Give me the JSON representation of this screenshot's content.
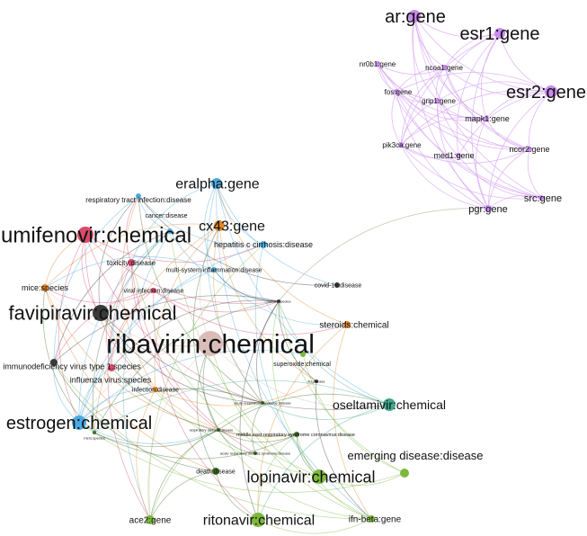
{
  "graph": {
    "type": "knowledge-graph",
    "group_colors": {
      "purple": "#c98bef",
      "blue": "#4aa9e0",
      "orange": "#e0862a",
      "red": "#d94a6c",
      "dark": "#3a3a3a",
      "rose": "#d9bcb8",
      "green": "#7db83d",
      "teal": "#42a68c",
      "darkgreen": "#3f6e2c"
    },
    "nodes": [
      {
        "id": "ar",
        "label": "ar:gene",
        "group": "purple"
      },
      {
        "id": "esr1",
        "label": "esr1:gene",
        "group": "purple"
      },
      {
        "id": "nr0b1",
        "label": "nr0b1:gene",
        "group": "purple"
      },
      {
        "id": "ncoa1",
        "label": "ncoa1:gene",
        "group": "purple"
      },
      {
        "id": "esr2",
        "label": "esr2:gene",
        "group": "purple"
      },
      {
        "id": "fos",
        "label": "fos:gene",
        "group": "purple"
      },
      {
        "id": "grip1",
        "label": "grip1:gene",
        "group": "purple"
      },
      {
        "id": "mapk1",
        "label": "mapk1:gene",
        "group": "purple"
      },
      {
        "id": "pik3ca",
        "label": "pik3ca:gene",
        "group": "purple"
      },
      {
        "id": "med1",
        "label": "med1:gene",
        "group": "purple"
      },
      {
        "id": "ncor2",
        "label": "ncor2:gene",
        "group": "purple"
      },
      {
        "id": "src",
        "label": "src:gene",
        "group": "purple"
      },
      {
        "id": "pgr",
        "label": "pgr:gene",
        "group": "purple"
      },
      {
        "id": "eralpha",
        "label": "eralpha:gene",
        "group": "blue"
      },
      {
        "id": "rti",
        "label": "respiratory tract infection:disease",
        "group": "blue"
      },
      {
        "id": "cancer",
        "label": "cancer:disease",
        "group": "blue"
      },
      {
        "id": "cx43",
        "label": "cx43:gene",
        "group": "orange"
      },
      {
        "id": "umifenovir",
        "label": "umifenovir:chemical",
        "group": "red"
      },
      {
        "id": "hcc",
        "label": "hepatitis c cirrhosis:disease",
        "group": "blue"
      },
      {
        "id": "toxicity",
        "label": "toxicity:disease",
        "group": "red"
      },
      {
        "id": "msi",
        "label": "multi-system inflammation:disease",
        "group": "blue"
      },
      {
        "id": "mice",
        "label": "mice:species",
        "group": "orange"
      },
      {
        "id": "viral",
        "label": "viral infection:disease",
        "group": "red"
      },
      {
        "id": "human",
        "label": "human:species",
        "group": "dark"
      },
      {
        "id": "covid",
        "label": "covid-19:disease",
        "group": "dark"
      },
      {
        "id": "favipiravir",
        "label": "favipiravir:chemical",
        "group": "dark"
      },
      {
        "id": "steroids",
        "label": "steroids:chemical",
        "group": "orange"
      },
      {
        "id": "ribavirin",
        "label": "ribavirin:chemical",
        "group": "rose"
      },
      {
        "id": "superoxide",
        "label": "superoxide:chemical",
        "group": "green"
      },
      {
        "id": "hiv",
        "label": "immunodeficiency virus type 1:species",
        "group": "dark"
      },
      {
        "id": "influenza",
        "label": "influenza virus:species",
        "group": "red"
      },
      {
        "id": "infection",
        "label": "infection:disease",
        "group": "orange"
      },
      {
        "id": "flu",
        "label": "flu:disease",
        "group": "dark"
      },
      {
        "id": "ars",
        "label": "acute respiratory syndrome:disease",
        "group": "darkgreen"
      },
      {
        "id": "oseltamivir",
        "label": "oseltamivir:chemical",
        "group": "teal"
      },
      {
        "id": "estrogen",
        "label": "estrogen:chemical",
        "group": "blue"
      },
      {
        "id": "mers",
        "label": "mers:species",
        "group": "darkgreen"
      },
      {
        "id": "rd",
        "label": "respiratory disease:disease",
        "group": "darkgreen"
      },
      {
        "id": "merscov",
        "label": "middle east respiratory syndrome coronavirus:disease",
        "group": "darkgreen"
      },
      {
        "id": "ards",
        "label": "acute respiratory distress syndrome:disease",
        "group": "darkgreen"
      },
      {
        "id": "death",
        "label": "death:disease",
        "group": "darkgreen"
      },
      {
        "id": "lopinavir",
        "label": "lopinavir:chemical",
        "group": "green"
      },
      {
        "id": "emerging",
        "label": "emerging disease:disease",
        "group": "green"
      },
      {
        "id": "ace2",
        "label": "ace2:gene",
        "group": "green"
      },
      {
        "id": "ritonavir",
        "label": "ritonavir:chemical",
        "group": "green"
      },
      {
        "id": "ifnb",
        "label": "ifn-beta:gene",
        "group": "green"
      }
    ]
  }
}
